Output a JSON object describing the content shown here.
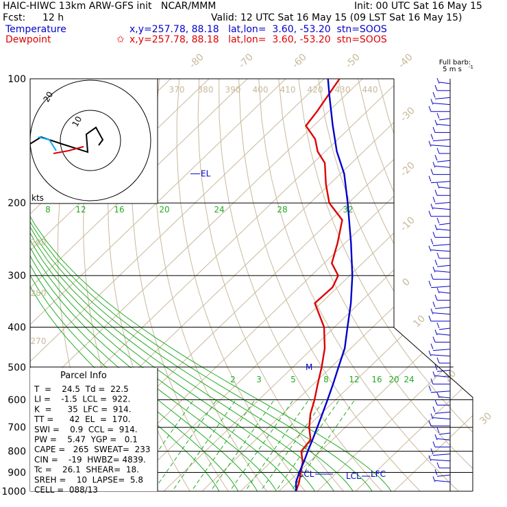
{
  "header": {
    "model_line": "HAIC-HIWC 13km ARW-GFS init   NCAR/MMM",
    "init_line": "Init: 00 UTC Sat 16 May 15",
    "fcst_label": "Fcst:",
    "fcst_value": "12 h",
    "valid_line": "Valid: 12 UTC Sat 16 May 15 (09 LST Sat 16 May 15)",
    "temperature_label": "Temperature",
    "temperature_info": "x,y=257.78, 88.18   lat,lon=  3.60, -53.20  stn=SOOS",
    "dewpoint_label": "Dewpoint",
    "dewpoint_marker": "✩",
    "dewpoint_info": "x,y=257.78, 88.18   lat,lon=  3.60, -53.20  stn=SOOS"
  },
  "legend": {
    "barb_title": "Full barb:",
    "barb_value": "5 m s",
    "barb_exp": "-1"
  },
  "hodograph": {
    "units": "kts",
    "ring_labels": [
      "10",
      "20"
    ]
  },
  "parcel_info": {
    "title": "Parcel Info",
    "rows": [
      "T  =    24.5  Td =  22.5",
      "LI =    -1.5  LCL =  922.",
      "K  =      35  LFC =  914.",
      "TT =      42  EL  =  170.",
      "SWI =    0.9  CCL =  914.",
      "PW =    5.47  YGP =   0.1",
      "CAPE =   265  SWEAT=  233",
      "CIN =    -19  HWBZ= 4839.",
      "Tc =    26.1  SHEAR=  18.",
      "SREH =    10  LAPSE=  5.8",
      "CELL =  088/13"
    ]
  },
  "chart_data": {
    "type": "line",
    "title": "HAIC-HIWC 13km ARW-GFS init   NCAR/MMM",
    "y_axis": "pressure (hPa, log)",
    "pressure_ticks": [
      100,
      200,
      300,
      400,
      500,
      600,
      700,
      800,
      900,
      1000
    ],
    "isotherm_labels": [
      "-80",
      "-70",
      "-60",
      "-50",
      "-40",
      "-30",
      "-20",
      "-10",
      "0",
      "10",
      "20",
      "30",
      "40"
    ],
    "theta_labels": [
      "370",
      "380",
      "390",
      "400",
      "410",
      "420",
      "430",
      "440",
      "290",
      "280",
      "270"
    ],
    "moist_adiabat_labels": [
      "8",
      "12",
      "16",
      "20",
      "24",
      "28",
      "32"
    ],
    "mixing_ratio_labels": [
      "2",
      "3",
      "5",
      "8",
      "12",
      "16",
      "20",
      "24"
    ],
    "levels": [
      {
        "name": "EL",
        "pressure": 170
      },
      {
        "name": "M",
        "pressure": 500
      },
      {
        "name": "CCL",
        "pressure": 914
      },
      {
        "name": "LCL",
        "pressure": 922
      },
      {
        "name": "LFC",
        "pressure": 914
      }
    ],
    "series": [
      {
        "name": "Temperature",
        "color": "#dd0000",
        "points": [
          [
            1000,
            24.5
          ],
          [
            950,
            22.8
          ],
          [
            900,
            20.6
          ],
          [
            850,
            18.3
          ],
          [
            800,
            15.0
          ],
          [
            750,
            14.3
          ],
          [
            700,
            10.6
          ],
          [
            650,
            7.3
          ],
          [
            600,
            4.5
          ],
          [
            550,
            1.1
          ],
          [
            500,
            -2.5
          ],
          [
            450,
            -6.8
          ],
          [
            400,
            -12.7
          ],
          [
            350,
            -21.6
          ],
          [
            320,
            -21.3
          ],
          [
            300,
            -23.0
          ],
          [
            280,
            -28.0
          ],
          [
            250,
            -32.0
          ],
          [
            220,
            -37.0
          ],
          [
            200,
            -45.0
          ],
          [
            180,
            -51.0
          ],
          [
            160,
            -57.0
          ],
          [
            150,
            -62.0
          ],
          [
            140,
            -66.0
          ],
          [
            130,
            -72.0
          ],
          [
            120,
            -73.0
          ],
          [
            100,
            -76.0
          ]
        ]
      },
      {
        "name": "Parcel",
        "color": "#0000cc",
        "points": [
          [
            1000,
            24.5
          ],
          [
            950,
            22.0
          ],
          [
            922,
            21.0
          ],
          [
            900,
            20.2
          ],
          [
            850,
            18.6
          ],
          [
            800,
            16.7
          ],
          [
            750,
            14.8
          ],
          [
            700,
            12.7
          ],
          [
            650,
            10.4
          ],
          [
            600,
            7.9
          ],
          [
            550,
            5.1
          ],
          [
            500,
            1.9
          ],
          [
            450,
            -1.6
          ],
          [
            400,
            -6.6
          ],
          [
            350,
            -12.2
          ],
          [
            300,
            -19.3
          ],
          [
            250,
            -28.5
          ],
          [
            200,
            -40.2
          ],
          [
            170,
            -49.0
          ],
          [
            150,
            -57.0
          ],
          [
            130,
            -65.0
          ],
          [
            110,
            -74.0
          ],
          [
            100,
            -79.0
          ]
        ]
      }
    ],
    "grid": true
  }
}
